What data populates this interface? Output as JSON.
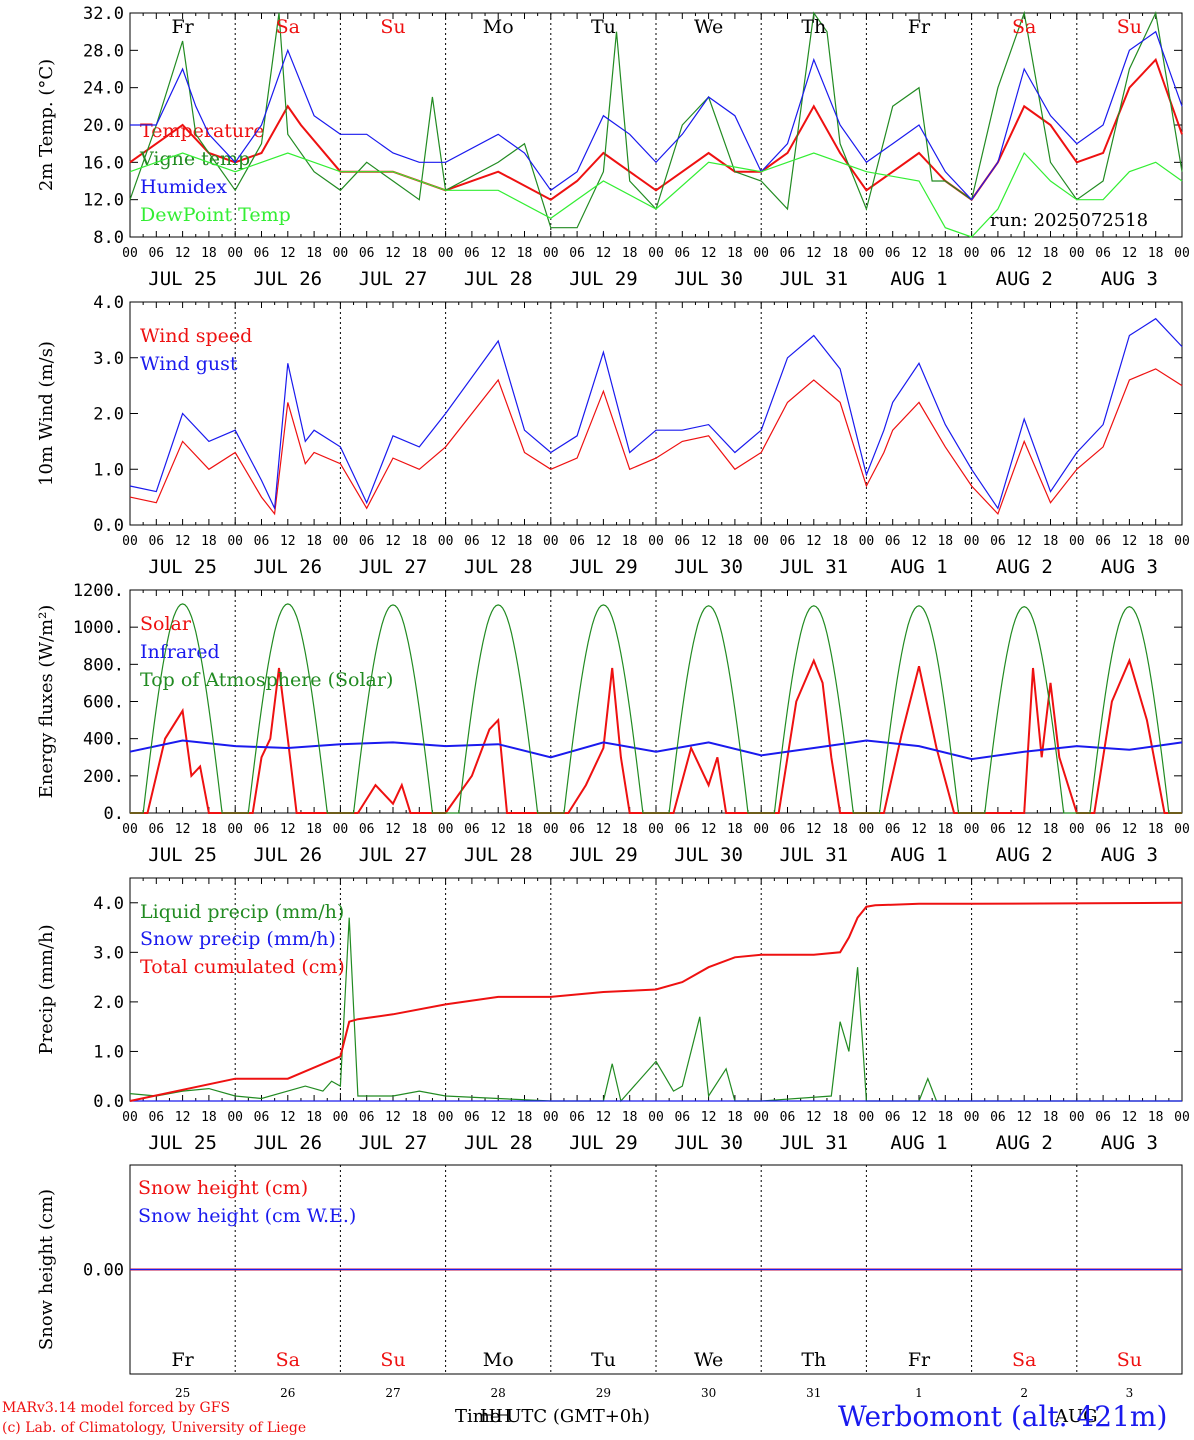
{
  "run_label": "run: 2025072518",
  "footer": {
    "model_line": "MARv3.14 model forced by GFS",
    "copyright_line": "(c) Lab. of Climatology, University of Liege",
    "xlabel": "Time UTC (GMT+0h)",
    "overlap_label": "HH",
    "month_label": "AUG",
    "station": "Werbomont (alt. 421m)"
  },
  "colors": {
    "red": "#ee1111",
    "blue": "#1a1aee",
    "green": "#228b22",
    "lightgreen": "#33ee33"
  },
  "axis": {
    "hour_ticks": [
      "00",
      "06",
      "12",
      "18"
    ],
    "day_labels": [
      "JUL 25",
      "JUL 26",
      "JUL 27",
      "JUL 28",
      "JUL 29",
      "JUL 30",
      "JUL 31",
      "AUG  1",
      "AUG  2",
      "AUG  3"
    ],
    "weekday_labels": [
      {
        "text": "Fr",
        "weekend": false
      },
      {
        "text": "Sa",
        "weekend": true
      },
      {
        "text": "Su",
        "weekend": true
      },
      {
        "text": "Mo",
        "weekend": false
      },
      {
        "text": "Tu",
        "weekend": false
      },
      {
        "text": "We",
        "weekend": false
      },
      {
        "text": "Th",
        "weekend": false
      },
      {
        "text": "Fr",
        "weekend": false
      },
      {
        "text": "Sa",
        "weekend": true
      },
      {
        "text": "Su",
        "weekend": true
      }
    ],
    "day_numbers": [
      "25",
      "26",
      "27",
      "28",
      "29",
      "30",
      "31",
      "1",
      "2",
      "3"
    ]
  },
  "chart_data": [
    {
      "type": "line",
      "ylabel": "2m Temp. (°C)",
      "ylim": [
        8,
        32
      ],
      "y_ticks": [
        "8.0",
        "12.0",
        "16.0",
        "20.0",
        "24.0",
        "28.0",
        "32.0"
      ],
      "series": [
        {
          "name": "Temperature",
          "color": "red",
          "hours": [
            0,
            12,
            18,
            24,
            30,
            36,
            39,
            48,
            60,
            72,
            84,
            96,
            102,
            108,
            114,
            120,
            126,
            132,
            138,
            144,
            150,
            156,
            162,
            168,
            174,
            180,
            186,
            192,
            198,
            204,
            210,
            216,
            222,
            228,
            234,
            240
          ],
          "values": [
            16,
            20,
            17,
            16,
            17,
            22,
            20,
            15,
            15,
            13,
            15,
            12,
            14,
            17,
            15,
            13,
            15,
            17,
            15,
            15,
            17,
            22,
            17,
            13,
            15,
            17,
            14,
            12,
            16,
            22,
            20,
            16,
            17,
            24,
            27,
            19
          ]
        },
        {
          "name": "Vigne temp",
          "color": "green",
          "hours": [
            0,
            6,
            12,
            15,
            18,
            24,
            30,
            34,
            36,
            42,
            48,
            54,
            60,
            66,
            69,
            72,
            84,
            90,
            96,
            102,
            108,
            111,
            114,
            120,
            126,
            132,
            138,
            144,
            150,
            156,
            159,
            162,
            168,
            174,
            180,
            183,
            186,
            192,
            198,
            204,
            210,
            216,
            222,
            228,
            234,
            240
          ],
          "values": [
            12,
            20,
            29,
            19,
            17,
            13,
            18,
            32,
            19,
            15,
            13,
            16,
            14,
            12,
            23,
            13,
            16,
            18,
            9,
            9,
            15,
            30,
            14,
            11,
            20,
            23,
            15,
            14,
            11,
            32,
            30,
            18,
            11,
            22,
            24,
            14,
            14,
            12,
            24,
            32,
            16,
            12,
            14,
            26,
            32,
            15
          ]
        },
        {
          "name": "Humidex",
          "color": "blue",
          "hours": [
            0,
            6,
            12,
            15,
            18,
            24,
            30,
            36,
            42,
            48,
            54,
            60,
            66,
            72,
            84,
            90,
            96,
            102,
            108,
            114,
            120,
            126,
            132,
            138,
            144,
            150,
            156,
            162,
            168,
            174,
            180,
            186,
            192,
            198,
            204,
            210,
            216,
            222,
            228,
            234,
            240
          ],
          "values": [
            20,
            20,
            26,
            22,
            19,
            16,
            20,
            28,
            21,
            19,
            19,
            17,
            16,
            16,
            19,
            17,
            13,
            15,
            21,
            19,
            16,
            19,
            23,
            21,
            15,
            18,
            27,
            20,
            16,
            18,
            20,
            15,
            12,
            16,
            26,
            21,
            18,
            20,
            28,
            30,
            22
          ]
        },
        {
          "name": "DewPoint Temp",
          "color": "lightgreen",
          "hours": [
            0,
            12,
            24,
            36,
            48,
            60,
            72,
            84,
            96,
            108,
            120,
            132,
            144,
            150,
            156,
            168,
            180,
            186,
            192,
            198,
            204,
            210,
            216,
            222,
            228,
            234,
            240
          ],
          "values": [
            15,
            17,
            15,
            17,
            15,
            15,
            13,
            13,
            10,
            14,
            11,
            16,
            15,
            16,
            17,
            15,
            14,
            9,
            8,
            11,
            17,
            14,
            12,
            12,
            15,
            16,
            14
          ]
        }
      ]
    },
    {
      "type": "line",
      "ylabel": "10m Wind (m/s)",
      "ylim": [
        0,
        4
      ],
      "y_ticks": [
        "0.0",
        "1.0",
        "2.0",
        "3.0",
        "4.0"
      ],
      "series": [
        {
          "name": "Wind speed",
          "color": "red",
          "hours": [
            0,
            6,
            12,
            18,
            24,
            30,
            33,
            36,
            40,
            42,
            48,
            54,
            60,
            66,
            72,
            84,
            90,
            96,
            102,
            108,
            114,
            120,
            126,
            132,
            138,
            144,
            150,
            156,
            162,
            168,
            172,
            174,
            180,
            186,
            192,
            198,
            204,
            210,
            216,
            222,
            228,
            234,
            240
          ],
          "values": [
            0.5,
            0.4,
            1.5,
            1.0,
            1.3,
            0.5,
            0.2,
            2.2,
            1.1,
            1.3,
            1.1,
            0.3,
            1.2,
            1.0,
            1.4,
            2.6,
            1.3,
            1.0,
            1.2,
            2.4,
            1.0,
            1.2,
            1.5,
            1.6,
            1.0,
            1.3,
            2.2,
            2.6,
            2.2,
            0.7,
            1.3,
            1.7,
            2.2,
            1.4,
            0.7,
            0.2,
            1.5,
            0.4,
            1.0,
            1.4,
            2.6,
            2.8,
            2.5
          ]
        },
        {
          "name": "Wind gust",
          "color": "blue",
          "hours": [
            0,
            6,
            12,
            18,
            24,
            30,
            33,
            36,
            40,
            42,
            48,
            54,
            60,
            66,
            72,
            84,
            90,
            96,
            102,
            108,
            114,
            120,
            126,
            132,
            138,
            144,
            150,
            156,
            162,
            168,
            172,
            174,
            180,
            186,
            192,
            198,
            204,
            210,
            216,
            222,
            228,
            234,
            240
          ],
          "values": [
            0.7,
            0.6,
            2.0,
            1.5,
            1.7,
            0.8,
            0.3,
            2.9,
            1.5,
            1.7,
            1.4,
            0.4,
            1.6,
            1.4,
            2.0,
            3.3,
            1.7,
            1.3,
            1.6,
            3.1,
            1.3,
            1.7,
            1.7,
            1.8,
            1.3,
            1.7,
            3.0,
            3.4,
            2.8,
            0.9,
            1.7,
            2.2,
            2.9,
            1.8,
            1.0,
            0.3,
            1.9,
            0.6,
            1.3,
            1.8,
            3.4,
            3.7,
            3.2
          ]
        }
      ]
    },
    {
      "type": "line",
      "ylabel": "Energy fluxes (W/m²)",
      "ylim": [
        0,
        1200
      ],
      "y_ticks": [
        "0.",
        "200.",
        "400.",
        "600.",
        "800.",
        "1000.",
        "1200."
      ],
      "series": [
        {
          "name": "Solar",
          "color": "red",
          "hours": [
            0,
            4,
            8,
            12,
            14,
            16,
            18,
            20,
            24,
            28,
            30,
            32,
            34,
            36,
            38,
            40,
            48,
            52,
            56,
            60,
            62,
            64,
            72,
            78,
            82,
            84,
            86,
            88,
            96,
            100,
            104,
            108,
            110,
            112,
            114,
            120,
            124,
            128,
            132,
            134,
            136,
            138,
            144,
            148,
            152,
            156,
            158,
            160,
            162,
            168,
            172,
            176,
            180,
            184,
            188,
            192,
            198,
            204,
            206,
            208,
            210,
            212,
            216,
            220,
            224,
            228,
            232,
            236,
            240
          ],
          "values": [
            0,
            0,
            400,
            550,
            200,
            250,
            0,
            0,
            0,
            0,
            300,
            400,
            780,
            400,
            0,
            0,
            0,
            0,
            150,
            50,
            150,
            0,
            0,
            200,
            450,
            500,
            0,
            0,
            0,
            0,
            150,
            350,
            780,
            300,
            0,
            0,
            0,
            350,
            150,
            300,
            0,
            0,
            0,
            0,
            600,
            820,
            700,
            300,
            0,
            0,
            0,
            420,
            790,
            350,
            0,
            0,
            0,
            0,
            780,
            300,
            700,
            300,
            0,
            0,
            600,
            820,
            500,
            0,
            0
          ]
        },
        {
          "name": "Infrared",
          "color": "blue",
          "hours": [
            0,
            12,
            24,
            36,
            48,
            60,
            72,
            84,
            96,
            108,
            120,
            132,
            144,
            156,
            168,
            180,
            192,
            204,
            216,
            228,
            240
          ],
          "values": [
            330,
            390,
            360,
            350,
            370,
            380,
            360,
            370,
            300,
            380,
            330,
            380,
            310,
            350,
            390,
            360,
            290,
            330,
            360,
            340,
            380
          ]
        },
        {
          "name": "Top of Atmosphere (Solar)",
          "color": "green",
          "peaks": [
            12,
            36,
            60,
            84,
            108,
            132,
            156,
            180,
            204,
            228
          ],
          "peak_values": [
            1125,
            1125,
            1120,
            1120,
            1120,
            1115,
            1115,
            1115,
            1110,
            1110
          ],
          "half_width": 9
        }
      ]
    },
    {
      "type": "line",
      "ylabel": "Precip (mm/h)",
      "ylim": [
        0,
        4.5
      ],
      "y_ticks": [
        "0.0",
        "1.0",
        "2.0",
        "3.0",
        "4.0"
      ],
      "series": [
        {
          "name": "Liquid precip (mm/h)",
          "color": "green",
          "hours": [
            0,
            6,
            12,
            18,
            24,
            30,
            40,
            44,
            46,
            48,
            50,
            52,
            56,
            60,
            66,
            72,
            84,
            96,
            108,
            110,
            112,
            120,
            122,
            124,
            126,
            130,
            132,
            136,
            138,
            140,
            144,
            160,
            162,
            164,
            166,
            168,
            180,
            182,
            184,
            240
          ],
          "values": [
            0.15,
            0.1,
            0.2,
            0.25,
            0.1,
            0.05,
            0.3,
            0.2,
            0.4,
            0.3,
            3.7,
            0.1,
            0.1,
            0.1,
            0.2,
            0.1,
            0.05,
            0,
            0,
            0.75,
            0,
            0.8,
            0.5,
            0.2,
            0.3,
            1.7,
            0.1,
            0.65,
            0,
            0,
            0,
            0.1,
            1.6,
            1.0,
            2.7,
            0,
            0,
            0.45,
            0,
            0
          ]
        },
        {
          "name": "Snow precip (mm/h)",
          "color": "blue",
          "hours": [
            0,
            240
          ],
          "values": [
            0,
            0
          ]
        },
        {
          "name": "Total cumulated (cm)",
          "color": "red",
          "hours": [
            0,
            24,
            36,
            48,
            50,
            52,
            60,
            72,
            84,
            96,
            108,
            120,
            126,
            132,
            138,
            144,
            156,
            162,
            164,
            166,
            168,
            170,
            180,
            192,
            240
          ],
          "values": [
            0,
            0.45,
            0.45,
            0.9,
            1.6,
            1.65,
            1.75,
            1.95,
            2.1,
            2.1,
            2.2,
            2.25,
            2.4,
            2.7,
            2.9,
            2.95,
            2.95,
            3.0,
            3.3,
            3.7,
            3.92,
            3.95,
            3.98,
            3.98,
            4.0
          ]
        }
      ]
    },
    {
      "type": "line",
      "ylabel": "Snow height (cm)",
      "ylim": [
        -1,
        1
      ],
      "y_ticks": [
        "0.00"
      ],
      "series": [
        {
          "name": "Snow height (cm)",
          "color": "red",
          "hours": [
            0,
            240
          ],
          "values": [
            0,
            0
          ]
        },
        {
          "name": "Snow height (cm W.E.)",
          "color": "blue",
          "hours": [
            0,
            240
          ],
          "values": [
            0,
            0
          ]
        }
      ]
    }
  ]
}
